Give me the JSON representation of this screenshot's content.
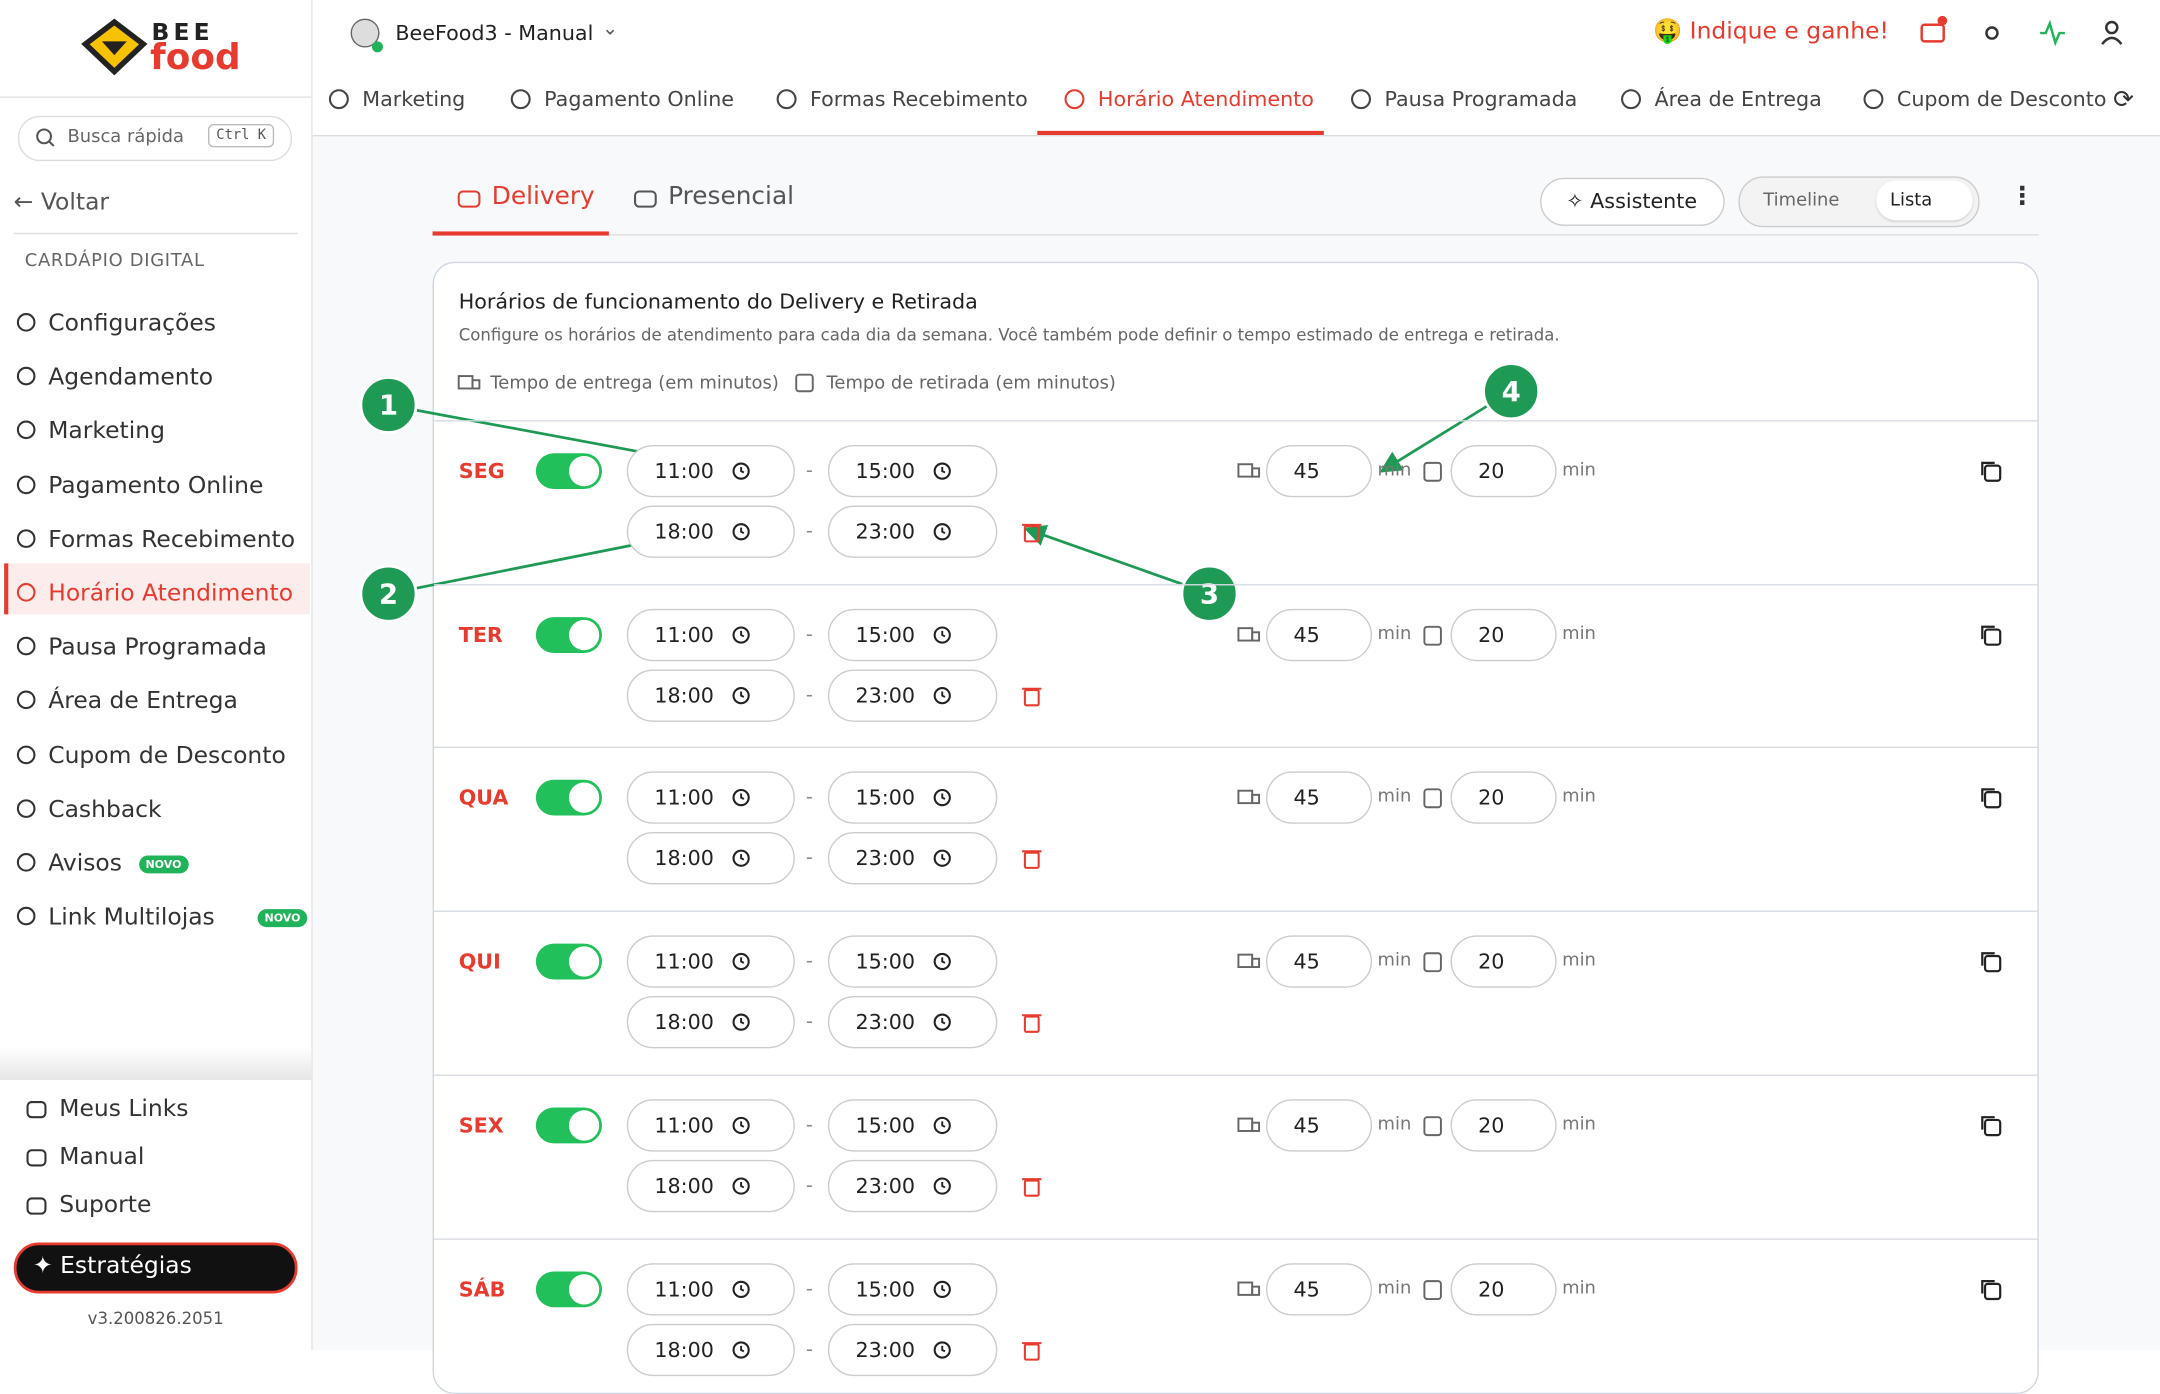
{
  "brand": {
    "top": "BEE",
    "bottom": "food"
  },
  "search": {
    "placeholder": "Busca rápida",
    "shortcut": "Ctrl K"
  },
  "back": "Voltar",
  "section": "CARDÁPIO DIGITAL",
  "menu": [
    {
      "label": "Configurações"
    },
    {
      "label": "Agendamento"
    },
    {
      "label": "Marketing"
    },
    {
      "label": "Pagamento Online"
    },
    {
      "label": "Formas Recebimento"
    },
    {
      "label": "Horário Atendimento",
      "active": true
    },
    {
      "label": "Pausa Programada"
    },
    {
      "label": "Área de Entrega"
    },
    {
      "label": "Cupom de Desconto"
    },
    {
      "label": "Cashback"
    },
    {
      "label": "Avisos",
      "badge": "NOVO"
    },
    {
      "label": "Link Multilojas",
      "badge": "NOVO"
    }
  ],
  "footer_links": [
    "Meus Links",
    "Manual",
    "Suporte"
  ],
  "strategies": "Estratégias",
  "version": "v3.200826.2051",
  "store": "BeeFood3 - Manual",
  "referral": "Indique e ganhe!",
  "tabs": [
    {
      "label": "Marketing"
    },
    {
      "label": "Pagamento Online"
    },
    {
      "label": "Formas Recebimento"
    },
    {
      "label": "Horário Atendimento",
      "active": true
    },
    {
      "label": "Pausa Programada"
    },
    {
      "label": "Área de Entrega"
    },
    {
      "label": "Cupom de Desconto"
    }
  ],
  "subtabs": [
    {
      "label": "Delivery",
      "active": true
    },
    {
      "label": "Presencial"
    }
  ],
  "assistant": "Assistente",
  "views": [
    {
      "label": "Timeline"
    },
    {
      "label": "Lista",
      "active": true
    }
  ],
  "card": {
    "title": "Horários de funcionamento do Delivery e Retirada",
    "description": "Configure os horários de atendimento para cada dia da semana. Você também pode definir o tempo estimado de entrega e retirada.",
    "legend": [
      "Tempo de entrega (em minutos)",
      "Tempo de retirada (em minutos)"
    ]
  },
  "unit": "min",
  "days": [
    {
      "name": "SEG",
      "enabled": true,
      "shifts": [
        [
          "11:00",
          "15:00"
        ],
        [
          "18:00",
          "23:00"
        ]
      ],
      "delivery": 45,
      "pickup": 20
    },
    {
      "name": "TER",
      "enabled": true,
      "shifts": [
        [
          "11:00",
          "15:00"
        ],
        [
          "18:00",
          "23:00"
        ]
      ],
      "delivery": 45,
      "pickup": 20
    },
    {
      "name": "QUA",
      "enabled": true,
      "shifts": [
        [
          "11:00",
          "15:00"
        ],
        [
          "18:00",
          "23:00"
        ]
      ],
      "delivery": 45,
      "pickup": 20
    },
    {
      "name": "QUI",
      "enabled": true,
      "shifts": [
        [
          "11:00",
          "15:00"
        ],
        [
          "18:00",
          "23:00"
        ]
      ],
      "delivery": 45,
      "pickup": 20
    },
    {
      "name": "SEX",
      "enabled": true,
      "shifts": [
        [
          "11:00",
          "15:00"
        ],
        [
          "18:00",
          "23:00"
        ]
      ],
      "delivery": 45,
      "pickup": 20
    },
    {
      "name": "SÁB",
      "enabled": true,
      "shifts": [
        [
          "11:00",
          "15:00"
        ],
        [
          "18:00",
          "23:00"
        ]
      ],
      "delivery": 45,
      "pickup": 20
    }
  ],
  "callouts": [
    "1",
    "2",
    "3",
    "4"
  ]
}
